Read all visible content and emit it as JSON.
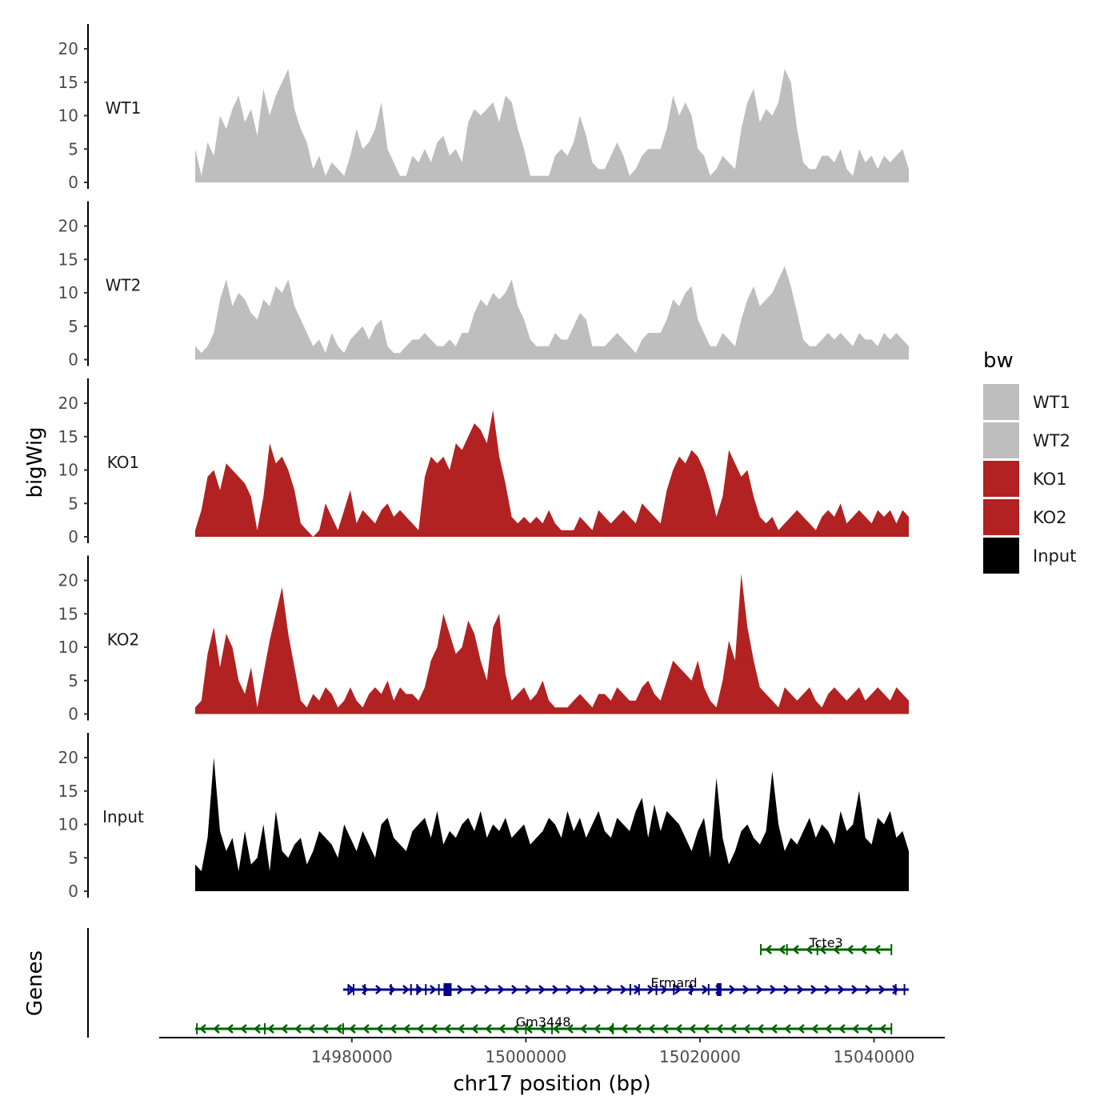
{
  "chart_data": {
    "type": "area",
    "ylabel": "bigWig",
    "genes_label": "Genes",
    "xlabel": "chr17 position (bp)",
    "x_range": [
      14962000,
      15044000
    ],
    "x_ticks": [
      14980000,
      15000000,
      15020000,
      15040000
    ],
    "x_tick_labels": [
      "14980000",
      "15000000",
      "15020000",
      "15040000"
    ],
    "ylim": [
      0,
      23
    ],
    "y_ticks": [
      0,
      5,
      10,
      15,
      20
    ],
    "y_tick_labels": [
      "0",
      "5",
      "10",
      "15",
      "20"
    ],
    "legend": {
      "title": "bw",
      "position": "right",
      "entries": [
        {
          "label": "WT1",
          "color": "#bebebe"
        },
        {
          "label": "WT2",
          "color": "#bebebe"
        },
        {
          "label": "KO1",
          "color": "#b22222"
        },
        {
          "label": "KO2",
          "color": "#b22222"
        },
        {
          "label": "Input",
          "color": "#000000"
        }
      ]
    },
    "tracks": [
      {
        "name": "WT1",
        "label": "WT1",
        "color": "#bebebe",
        "values": [
          5,
          1,
          6,
          4,
          10,
          8,
          11,
          13,
          9,
          11,
          7,
          14,
          10,
          13,
          15,
          17,
          11,
          8,
          6,
          2,
          4,
          1,
          3,
          2,
          1,
          4,
          8,
          5,
          6,
          8,
          12,
          5,
          3,
          1,
          1,
          4,
          3,
          5,
          3,
          6,
          7,
          4,
          5,
          3,
          9,
          11,
          10,
          11,
          12,
          9,
          13,
          12,
          8,
          5,
          1,
          1,
          1,
          1,
          4,
          5,
          4,
          6,
          10,
          7,
          3,
          2,
          2,
          4,
          6,
          4,
          1,
          2,
          4,
          5,
          5,
          5,
          8,
          13,
          10,
          12,
          10,
          5,
          4,
          1,
          2,
          4,
          3,
          2,
          8,
          12,
          14,
          9,
          11,
          10,
          12,
          17,
          15,
          8,
          3,
          2,
          2,
          4,
          4,
          3,
          5,
          2,
          1,
          5,
          3,
          4,
          2,
          4,
          3,
          4,
          5,
          2
        ]
      },
      {
        "name": "WT2",
        "label": "WT2",
        "color": "#bebebe",
        "values": [
          2,
          1,
          2,
          4,
          9,
          12,
          8,
          10,
          9,
          7,
          6,
          9,
          8,
          11,
          10,
          12,
          8,
          6,
          4,
          2,
          3,
          1,
          4,
          2,
          1,
          3,
          4,
          5,
          3,
          5,
          6,
          2,
          1,
          1,
          2,
          3,
          3,
          4,
          3,
          2,
          2,
          3,
          2,
          4,
          4,
          7,
          9,
          8,
          10,
          9,
          10,
          12,
          8,
          6,
          3,
          2,
          2,
          2,
          4,
          3,
          3,
          5,
          7,
          6,
          2,
          2,
          2,
          3,
          4,
          3,
          2,
          1,
          3,
          4,
          4,
          4,
          6,
          9,
          8,
          10,
          11,
          6,
          4,
          2,
          2,
          4,
          3,
          2,
          6,
          9,
          11,
          8,
          9,
          10,
          12,
          14,
          11,
          7,
          3,
          2,
          2,
          3,
          4,
          3,
          4,
          3,
          2,
          4,
          3,
          3,
          2,
          4,
          3,
          4,
          3,
          2
        ]
      },
      {
        "name": "KO1",
        "label": "KO1",
        "color": "#b22222",
        "values": [
          1,
          4,
          9,
          10,
          7,
          11,
          10,
          9,
          8,
          6,
          1,
          6,
          14,
          11,
          12,
          10,
          7,
          2,
          1,
          0,
          1,
          5,
          3,
          1,
          4,
          7,
          2,
          4,
          3,
          2,
          4,
          5,
          3,
          4,
          3,
          2,
          1,
          9,
          12,
          11,
          12,
          10,
          14,
          13,
          15,
          17,
          16,
          14,
          19,
          12,
          8,
          3,
          2,
          3,
          2,
          3,
          2,
          4,
          2,
          1,
          1,
          1,
          3,
          2,
          1,
          4,
          3,
          2,
          3,
          4,
          3,
          2,
          5,
          4,
          3,
          2,
          7,
          10,
          12,
          11,
          13,
          12,
          10,
          7,
          3,
          6,
          13,
          11,
          9,
          10,
          6,
          3,
          2,
          3,
          1,
          2,
          3,
          4,
          3,
          2,
          1,
          3,
          4,
          3,
          5,
          2,
          3,
          4,
          3,
          2,
          4,
          3,
          4,
          2,
          4,
          3
        ]
      },
      {
        "name": "KO2",
        "label": "KO2",
        "color": "#b22222",
        "values": [
          1,
          2,
          9,
          13,
          7,
          12,
          10,
          5,
          3,
          7,
          1,
          6,
          11,
          15,
          19,
          12,
          7,
          2,
          1,
          3,
          2,
          4,
          3,
          1,
          2,
          4,
          2,
          1,
          3,
          4,
          3,
          5,
          2,
          4,
          3,
          3,
          2,
          4,
          8,
          10,
          15,
          12,
          9,
          10,
          14,
          12,
          8,
          5,
          13,
          15,
          6,
          2,
          3,
          4,
          2,
          3,
          5,
          2,
          1,
          1,
          1,
          2,
          3,
          2,
          1,
          3,
          3,
          2,
          4,
          3,
          2,
          2,
          4,
          5,
          3,
          2,
          5,
          8,
          7,
          6,
          5,
          8,
          4,
          2,
          1,
          5,
          11,
          8,
          21,
          13,
          8,
          4,
          3,
          2,
          1,
          4,
          3,
          2,
          3,
          4,
          2,
          1,
          3,
          4,
          3,
          2,
          3,
          4,
          2,
          3,
          4,
          3,
          2,
          4,
          3,
          2
        ]
      },
      {
        "name": "Input",
        "label": "Input",
        "color": "#000000",
        "values": [
          4,
          3,
          8,
          20,
          9,
          6,
          8,
          3,
          9,
          4,
          5,
          10,
          3,
          12,
          6,
          5,
          7,
          8,
          4,
          6,
          9,
          8,
          7,
          5,
          10,
          8,
          6,
          9,
          7,
          5,
          10,
          11,
          8,
          7,
          6,
          9,
          10,
          11,
          8,
          12,
          7,
          9,
          8,
          10,
          11,
          9,
          12,
          8,
          10,
          9,
          11,
          8,
          9,
          10,
          7,
          8,
          9,
          11,
          10,
          8,
          12,
          9,
          11,
          8,
          10,
          12,
          9,
          8,
          11,
          10,
          9,
          12,
          14,
          8,
          13,
          9,
          12,
          11,
          10,
          8,
          6,
          9,
          11,
          5,
          17,
          8,
          4,
          6,
          9,
          10,
          8,
          7,
          9,
          18,
          10,
          6,
          8,
          7,
          9,
          11,
          8,
          10,
          9,
          7,
          12,
          9,
          10,
          15,
          8,
          7,
          11,
          10,
          12,
          8,
          9,
          6
        ]
      }
    ],
    "genes": [
      {
        "name": "Tcte3",
        "start": 15027000,
        "end": 15042000,
        "strand": "-",
        "color": "#006400",
        "row": 0,
        "exons": [
          15027000,
          15030000,
          15033500,
          15042000
        ]
      },
      {
        "name": "Ermard",
        "start": 14979000,
        "end": 15044000,
        "strand": "+",
        "color": "#00008b",
        "row": 1,
        "exons": [
          14979600,
          14980200,
          14981500,
          14984500,
          14986800,
          14987500,
          14988500,
          14990000,
          14991000,
          15012000,
          15013000,
          15015000,
          15017000,
          15019000,
          15021000,
          15022200,
          15042500,
          15043500
        ]
      },
      {
        "name": "Gm3448",
        "start": 14962000,
        "end": 15042000,
        "strand": "-",
        "color": "#006400",
        "row": 2,
        "exons": [
          14962200,
          14970000,
          14979000,
          15000000,
          15003000,
          15010000,
          15042000
        ]
      }
    ]
  }
}
